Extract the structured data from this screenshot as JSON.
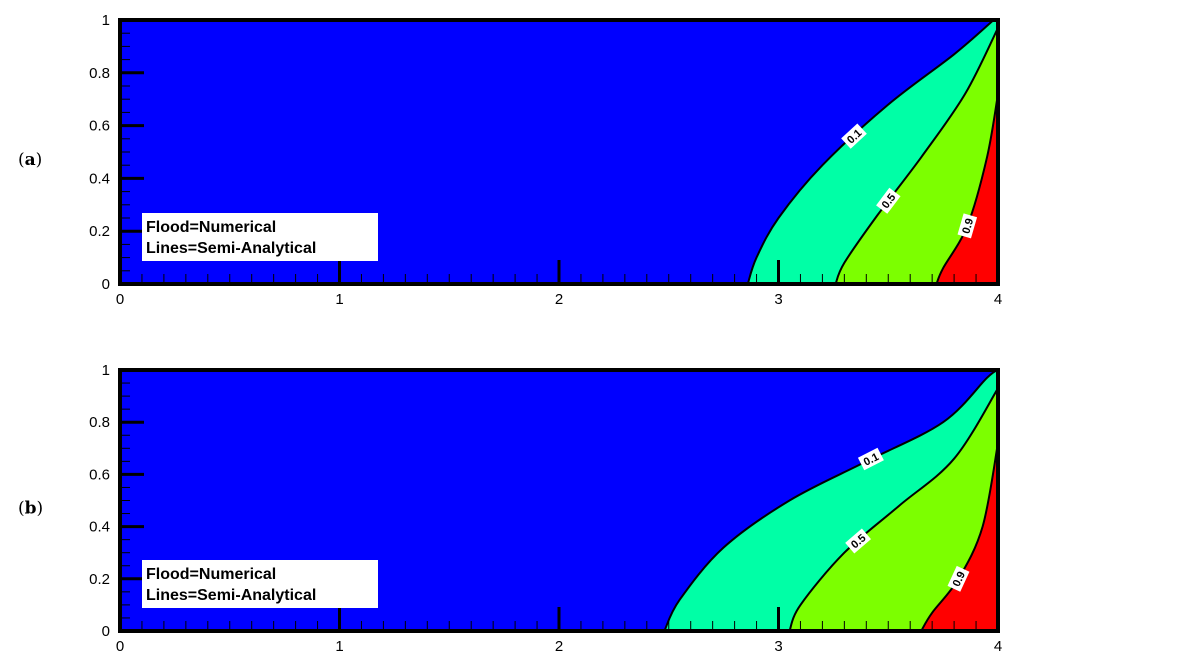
{
  "chart_data": [
    {
      "type": "contour",
      "panel_label": "a",
      "xlim": [
        0,
        4
      ],
      "ylim": [
        0,
        1
      ],
      "x_ticks": [
        "0",
        "1",
        "2",
        "3",
        "4"
      ],
      "y_ticks": [
        "0",
        "0.2",
        "0.4",
        "0.6",
        "0.8",
        "1"
      ],
      "legend": [
        "Flood=Numerical",
        "Lines=Semi-Analytical"
      ],
      "colors": {
        "background": "#0000ff",
        "band_0.1_0.5": "#00ffa6",
        "band_0.5_0.9": "#7cff00",
        "band_0.9_1": "#ff0000"
      },
      "contours": [
        {
          "level": "0.1",
          "points": [
            [
              2.86,
              0
            ],
            [
              2.9,
              0.1
            ],
            [
              3.0,
              0.25
            ],
            [
              3.2,
              0.45
            ],
            [
              3.5,
              0.68
            ],
            [
              3.8,
              0.87
            ],
            [
              3.98,
              1.0
            ]
          ]
        },
        {
          "level": "0.5",
          "points": [
            [
              3.26,
              0
            ],
            [
              3.3,
              0.08
            ],
            [
              3.45,
              0.26
            ],
            [
              3.65,
              0.48
            ],
            [
              3.85,
              0.72
            ],
            [
              4.0,
              0.97
            ]
          ]
        },
        {
          "level": "0.9",
          "points": [
            [
              3.72,
              0
            ],
            [
              3.75,
              0.06
            ],
            [
              3.86,
              0.22
            ],
            [
              3.95,
              0.48
            ],
            [
              4.0,
              0.72
            ]
          ]
        }
      ]
    },
    {
      "type": "contour",
      "panel_label": "b",
      "xlim": [
        0,
        4
      ],
      "ylim": [
        0,
        1
      ],
      "x_ticks": [
        "0",
        "1",
        "2",
        "3",
        "4"
      ],
      "y_ticks": [
        "0",
        "0.2",
        "0.4",
        "0.6",
        "0.8",
        "1"
      ],
      "legend": [
        "Flood=Numerical",
        "Lines=Semi-Analytical"
      ],
      "colors": {
        "background": "#0000ff",
        "band_0.1_0.5": "#00ffa6",
        "band_0.5_0.9": "#7cff00",
        "band_0.9_1": "#ff0000"
      },
      "contours": [
        {
          "level": "0.1",
          "points": [
            [
              2.48,
              0
            ],
            [
              2.55,
              0.12
            ],
            [
              2.75,
              0.32
            ],
            [
              3.05,
              0.5
            ],
            [
              3.4,
              0.65
            ],
            [
              3.75,
              0.8
            ],
            [
              3.95,
              0.97
            ],
            [
              4.0,
              1.0
            ]
          ]
        },
        {
          "level": "0.5",
          "points": [
            [
              3.05,
              0
            ],
            [
              3.1,
              0.1
            ],
            [
              3.3,
              0.3
            ],
            [
              3.55,
              0.48
            ],
            [
              3.8,
              0.66
            ],
            [
              4.0,
              0.93
            ]
          ]
        },
        {
          "level": "0.9",
          "points": [
            [
              3.65,
              0
            ],
            [
              3.7,
              0.07
            ],
            [
              3.82,
              0.2
            ],
            [
              3.93,
              0.4
            ],
            [
              4.0,
              0.72
            ]
          ]
        }
      ]
    }
  ]
}
